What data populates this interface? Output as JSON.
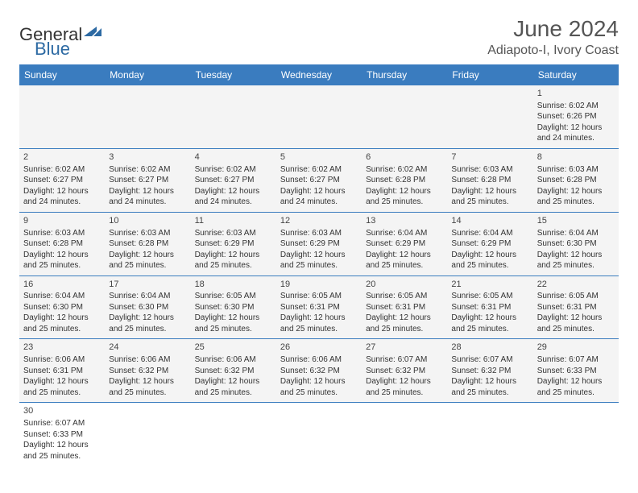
{
  "logo": {
    "general": "General",
    "blue": "Blue"
  },
  "title": "June 2024",
  "location": "Adiapoto-I, Ivory Coast",
  "colors": {
    "header_bg": "#3a7cbf",
    "header_text": "#ffffff",
    "cell_bg": "#f4f4f4",
    "border": "#3a7cbf",
    "text": "#333333",
    "title_text": "#555555",
    "logo_blue": "#2d6aa3"
  },
  "day_headers": [
    "Sunday",
    "Monday",
    "Tuesday",
    "Wednesday",
    "Thursday",
    "Friday",
    "Saturday"
  ],
  "weeks": [
    [
      null,
      null,
      null,
      null,
      null,
      null,
      {
        "n": "1",
        "sunrise": "Sunrise: 6:02 AM",
        "sunset": "Sunset: 6:26 PM",
        "daylight1": "Daylight: 12 hours",
        "daylight2": "and 24 minutes."
      }
    ],
    [
      {
        "n": "2",
        "sunrise": "Sunrise: 6:02 AM",
        "sunset": "Sunset: 6:27 PM",
        "daylight1": "Daylight: 12 hours",
        "daylight2": "and 24 minutes."
      },
      {
        "n": "3",
        "sunrise": "Sunrise: 6:02 AM",
        "sunset": "Sunset: 6:27 PM",
        "daylight1": "Daylight: 12 hours",
        "daylight2": "and 24 minutes."
      },
      {
        "n": "4",
        "sunrise": "Sunrise: 6:02 AM",
        "sunset": "Sunset: 6:27 PM",
        "daylight1": "Daylight: 12 hours",
        "daylight2": "and 24 minutes."
      },
      {
        "n": "5",
        "sunrise": "Sunrise: 6:02 AM",
        "sunset": "Sunset: 6:27 PM",
        "daylight1": "Daylight: 12 hours",
        "daylight2": "and 24 minutes."
      },
      {
        "n": "6",
        "sunrise": "Sunrise: 6:02 AM",
        "sunset": "Sunset: 6:28 PM",
        "daylight1": "Daylight: 12 hours",
        "daylight2": "and 25 minutes."
      },
      {
        "n": "7",
        "sunrise": "Sunrise: 6:03 AM",
        "sunset": "Sunset: 6:28 PM",
        "daylight1": "Daylight: 12 hours",
        "daylight2": "and 25 minutes."
      },
      {
        "n": "8",
        "sunrise": "Sunrise: 6:03 AM",
        "sunset": "Sunset: 6:28 PM",
        "daylight1": "Daylight: 12 hours",
        "daylight2": "and 25 minutes."
      }
    ],
    [
      {
        "n": "9",
        "sunrise": "Sunrise: 6:03 AM",
        "sunset": "Sunset: 6:28 PM",
        "daylight1": "Daylight: 12 hours",
        "daylight2": "and 25 minutes."
      },
      {
        "n": "10",
        "sunrise": "Sunrise: 6:03 AM",
        "sunset": "Sunset: 6:28 PM",
        "daylight1": "Daylight: 12 hours",
        "daylight2": "and 25 minutes."
      },
      {
        "n": "11",
        "sunrise": "Sunrise: 6:03 AM",
        "sunset": "Sunset: 6:29 PM",
        "daylight1": "Daylight: 12 hours",
        "daylight2": "and 25 minutes."
      },
      {
        "n": "12",
        "sunrise": "Sunrise: 6:03 AM",
        "sunset": "Sunset: 6:29 PM",
        "daylight1": "Daylight: 12 hours",
        "daylight2": "and 25 minutes."
      },
      {
        "n": "13",
        "sunrise": "Sunrise: 6:04 AM",
        "sunset": "Sunset: 6:29 PM",
        "daylight1": "Daylight: 12 hours",
        "daylight2": "and 25 minutes."
      },
      {
        "n": "14",
        "sunrise": "Sunrise: 6:04 AM",
        "sunset": "Sunset: 6:29 PM",
        "daylight1": "Daylight: 12 hours",
        "daylight2": "and 25 minutes."
      },
      {
        "n": "15",
        "sunrise": "Sunrise: 6:04 AM",
        "sunset": "Sunset: 6:30 PM",
        "daylight1": "Daylight: 12 hours",
        "daylight2": "and 25 minutes."
      }
    ],
    [
      {
        "n": "16",
        "sunrise": "Sunrise: 6:04 AM",
        "sunset": "Sunset: 6:30 PM",
        "daylight1": "Daylight: 12 hours",
        "daylight2": "and 25 minutes."
      },
      {
        "n": "17",
        "sunrise": "Sunrise: 6:04 AM",
        "sunset": "Sunset: 6:30 PM",
        "daylight1": "Daylight: 12 hours",
        "daylight2": "and 25 minutes."
      },
      {
        "n": "18",
        "sunrise": "Sunrise: 6:05 AM",
        "sunset": "Sunset: 6:30 PM",
        "daylight1": "Daylight: 12 hours",
        "daylight2": "and 25 minutes."
      },
      {
        "n": "19",
        "sunrise": "Sunrise: 6:05 AM",
        "sunset": "Sunset: 6:31 PM",
        "daylight1": "Daylight: 12 hours",
        "daylight2": "and 25 minutes."
      },
      {
        "n": "20",
        "sunrise": "Sunrise: 6:05 AM",
        "sunset": "Sunset: 6:31 PM",
        "daylight1": "Daylight: 12 hours",
        "daylight2": "and 25 minutes."
      },
      {
        "n": "21",
        "sunrise": "Sunrise: 6:05 AM",
        "sunset": "Sunset: 6:31 PM",
        "daylight1": "Daylight: 12 hours",
        "daylight2": "and 25 minutes."
      },
      {
        "n": "22",
        "sunrise": "Sunrise: 6:05 AM",
        "sunset": "Sunset: 6:31 PM",
        "daylight1": "Daylight: 12 hours",
        "daylight2": "and 25 minutes."
      }
    ],
    [
      {
        "n": "23",
        "sunrise": "Sunrise: 6:06 AM",
        "sunset": "Sunset: 6:31 PM",
        "daylight1": "Daylight: 12 hours",
        "daylight2": "and 25 minutes."
      },
      {
        "n": "24",
        "sunrise": "Sunrise: 6:06 AM",
        "sunset": "Sunset: 6:32 PM",
        "daylight1": "Daylight: 12 hours",
        "daylight2": "and 25 minutes."
      },
      {
        "n": "25",
        "sunrise": "Sunrise: 6:06 AM",
        "sunset": "Sunset: 6:32 PM",
        "daylight1": "Daylight: 12 hours",
        "daylight2": "and 25 minutes."
      },
      {
        "n": "26",
        "sunrise": "Sunrise: 6:06 AM",
        "sunset": "Sunset: 6:32 PM",
        "daylight1": "Daylight: 12 hours",
        "daylight2": "and 25 minutes."
      },
      {
        "n": "27",
        "sunrise": "Sunrise: 6:07 AM",
        "sunset": "Sunset: 6:32 PM",
        "daylight1": "Daylight: 12 hours",
        "daylight2": "and 25 minutes."
      },
      {
        "n": "28",
        "sunrise": "Sunrise: 6:07 AM",
        "sunset": "Sunset: 6:32 PM",
        "daylight1": "Daylight: 12 hours",
        "daylight2": "and 25 minutes."
      },
      {
        "n": "29",
        "sunrise": "Sunrise: 6:07 AM",
        "sunset": "Sunset: 6:33 PM",
        "daylight1": "Daylight: 12 hours",
        "daylight2": "and 25 minutes."
      }
    ],
    [
      {
        "n": "30",
        "sunrise": "Sunrise: 6:07 AM",
        "sunset": "Sunset: 6:33 PM",
        "daylight1": "Daylight: 12 hours",
        "daylight2": "and 25 minutes."
      },
      null,
      null,
      null,
      null,
      null,
      null
    ]
  ]
}
